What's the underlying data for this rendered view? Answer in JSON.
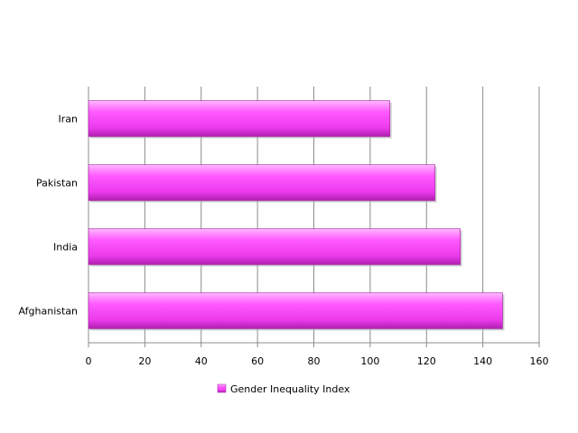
{
  "chart_data": {
    "type": "bar",
    "orientation": "horizontal",
    "categories": [
      "Iran",
      "Pakistan",
      "India",
      "Afghanistan"
    ],
    "series": [
      {
        "name": "Gender Inequality Index",
        "values": [
          107,
          123,
          132,
          147
        ]
      }
    ],
    "xlim": [
      0,
      160
    ],
    "x_ticks": [
      "0",
      "20",
      "40",
      "60",
      "80",
      "100",
      "120",
      "140",
      "160"
    ],
    "grid": "vertical",
    "legend_position": "bottom",
    "bar_color": "#f040f0",
    "title": "",
    "xlabel": "",
    "ylabel": ""
  }
}
